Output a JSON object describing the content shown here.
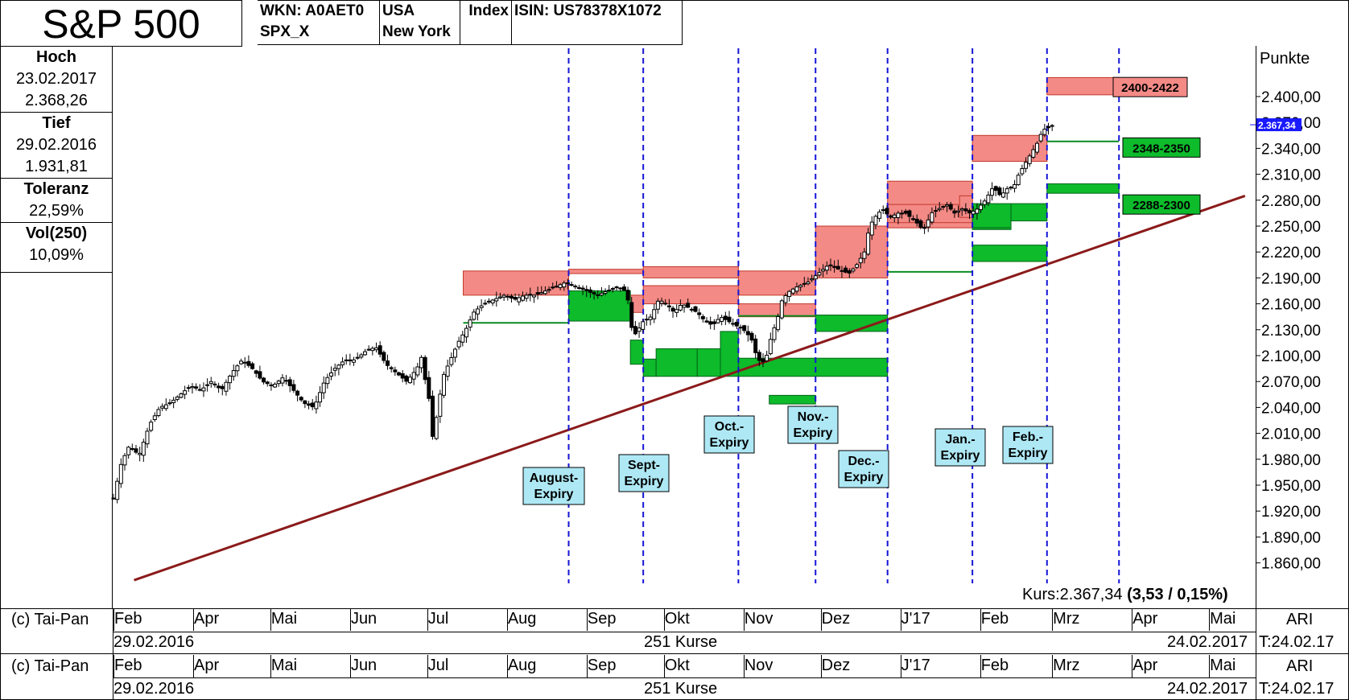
{
  "header": {
    "title": "S&P 500",
    "wkn": "WKN: A0AET0",
    "symbol": "SPX_X",
    "country": "USA",
    "exchange": "New York",
    "type": "Index",
    "isin": "ISIN: US78378X1072"
  },
  "stats": {
    "high_label": "Hoch",
    "high_date": "23.02.2017",
    "high_value": "2.368,26",
    "low_label": "Tief",
    "low_date": "29.02.2016",
    "low_value": "1.931,81",
    "tolerance_label": "Toleranz",
    "tolerance_value": "22,59%",
    "vol_label": "Vol(250)",
    "vol_value": "10,09%"
  },
  "chart_data": {
    "type": "candlestick",
    "ylabel": "Punkte",
    "ylim": [
      1835,
      2445
    ],
    "yticks": [
      "1.860,00",
      "1.890,00",
      "1.920,00",
      "1.950,00",
      "1.980,00",
      "2.010,00",
      "2.040,00",
      "2.070,00",
      "2.100,00",
      "2.130,00",
      "2.160,00",
      "2.190,00",
      "2.220,00",
      "2.250,00",
      "2.280,00",
      "2.310,00",
      "2.340,00",
      "2.370,00",
      "2.400,00"
    ],
    "last_price_tag": "2.367,34",
    "kurs_label": "Kurs:2.367,34",
    "kurs_change": "(3,53 / 0,15%)",
    "months": [
      {
        "label": "Feb",
        "day": 0
      },
      {
        "label": "Apr",
        "day": 31
      },
      {
        "label": "Mai",
        "day": 61
      },
      {
        "label": "Jun",
        "day": 92
      },
      {
        "label": "Jul",
        "day": 122
      },
      {
        "label": "Aug",
        "day": 153
      },
      {
        "label": "Sep",
        "day": 184
      },
      {
        "label": "Okt",
        "day": 214
      },
      {
        "label": "Nov",
        "day": 245
      },
      {
        "label": "Dez",
        "day": 275
      },
      {
        "label": "J'17",
        "day": 306
      },
      {
        "label": "Feb",
        "day": 337
      },
      {
        "label": "Mrz",
        "day": 365
      },
      {
        "label": "Apr",
        "day": 396
      },
      {
        "label": "Mai",
        "day": 426
      }
    ],
    "expiries": [
      {
        "label": "August-|Expiry",
        "day": 177
      },
      {
        "label": "Sept-|Expiry",
        "day": 206
      },
      {
        "label": "Oct.-|Expiry",
        "day": 243
      },
      {
        "label": "Nov.-|Expiry",
        "day": 273
      },
      {
        "label": "Dec.-|Expiry",
        "day": 301
      },
      {
        "label": "Jan.-|Expiry",
        "day": 334
      },
      {
        "label": "Feb.-|Expiry",
        "day": 363
      }
    ],
    "expiry_vlines": [
      177,
      206,
      243,
      273,
      301,
      334,
      363,
      391
    ],
    "price_path": [
      [
        0,
        1935
      ],
      [
        3,
        1975
      ],
      [
        6,
        1995
      ],
      [
        10,
        1985
      ],
      [
        14,
        2020
      ],
      [
        18,
        2040
      ],
      [
        22,
        2045
      ],
      [
        26,
        2055
      ],
      [
        30,
        2065
      ],
      [
        34,
        2060
      ],
      [
        38,
        2070
      ],
      [
        42,
        2060
      ],
      [
        46,
        2080
      ],
      [
        50,
        2095
      ],
      [
        54,
        2085
      ],
      [
        58,
        2070
      ],
      [
        62,
        2065
      ],
      [
        66,
        2075
      ],
      [
        70,
        2060
      ],
      [
        74,
        2045
      ],
      [
        78,
        2040
      ],
      [
        82,
        2070
      ],
      [
        86,
        2085
      ],
      [
        90,
        2095
      ],
      [
        94,
        2095
      ],
      [
        98,
        2105
      ],
      [
        102,
        2110
      ],
      [
        106,
        2090
      ],
      [
        110,
        2080
      ],
      [
        114,
        2070
      ],
      [
        118,
        2085
      ],
      [
        120,
        2100
      ],
      [
        121,
        2075
      ],
      [
        123,
        2045
      ],
      [
        124,
        2005
      ],
      [
        126,
        2035
      ],
      [
        128,
        2075
      ],
      [
        131,
        2095
      ],
      [
        134,
        2115
      ],
      [
        137,
        2130
      ],
      [
        140,
        2150
      ],
      [
        144,
        2160
      ],
      [
        148,
        2165
      ],
      [
        152,
        2170
      ],
      [
        156,
        2165
      ],
      [
        160,
        2170
      ],
      [
        164,
        2170
      ],
      [
        168,
        2175
      ],
      [
        172,
        2180
      ],
      [
        176,
        2185
      ],
      [
        180,
        2180
      ],
      [
        184,
        2175
      ],
      [
        188,
        2170
      ],
      [
        192,
        2175
      ],
      [
        196,
        2180
      ],
      [
        199,
        2175
      ],
      [
        200,
        2165
      ],
      [
        201,
        2135
      ],
      [
        203,
        2125
      ],
      [
        206,
        2140
      ],
      [
        209,
        2145
      ],
      [
        212,
        2165
      ],
      [
        215,
        2160
      ],
      [
        218,
        2150
      ],
      [
        221,
        2160
      ],
      [
        224,
        2155
      ],
      [
        227,
        2150
      ],
      [
        230,
        2140
      ],
      [
        233,
        2135
      ],
      [
        236,
        2145
      ],
      [
        239,
        2140
      ],
      [
        242,
        2135
      ],
      [
        245,
        2130
      ],
      [
        248,
        2120
      ],
      [
        250,
        2100
      ],
      [
        252,
        2090
      ],
      [
        254,
        2100
      ],
      [
        256,
        2125
      ],
      [
        258,
        2140
      ],
      [
        260,
        2165
      ],
      [
        263,
        2175
      ],
      [
        266,
        2180
      ],
      [
        270,
        2185
      ],
      [
        274,
        2195
      ],
      [
        278,
        2205
      ],
      [
        282,
        2200
      ],
      [
        286,
        2195
      ],
      [
        289,
        2205
      ],
      [
        292,
        2220
      ],
      [
        294,
        2250
      ],
      [
        296,
        2260
      ],
      [
        299,
        2270
      ],
      [
        302,
        2260
      ],
      [
        305,
        2265
      ],
      [
        308,
        2265
      ],
      [
        312,
        2255
      ],
      [
        315,
        2245
      ],
      [
        318,
        2265
      ],
      [
        321,
        2270
      ],
      [
        324,
        2275
      ],
      [
        327,
        2265
      ],
      [
        330,
        2270
      ],
      [
        333,
        2265
      ],
      [
        336,
        2270
      ],
      [
        339,
        2280
      ],
      [
        342,
        2295
      ],
      [
        345,
        2285
      ],
      [
        348,
        2295
      ],
      [
        350,
        2295
      ],
      [
        352,
        2310
      ],
      [
        354,
        2320
      ],
      [
        356,
        2330
      ],
      [
        358,
        2340
      ],
      [
        359,
        2345
      ],
      [
        360,
        2350
      ],
      [
        361,
        2360
      ],
      [
        362,
        2362
      ],
      [
        363,
        2365
      ],
      [
        364,
        2363
      ],
      [
        365,
        2366
      ],
      [
        366,
        2367
      ]
    ],
    "call_zones": [
      [
        136,
        177,
        2170,
        2198
      ],
      [
        177,
        206,
        2195,
        2200
      ],
      [
        206,
        243,
        2190,
        2203
      ],
      [
        206,
        243,
        2160,
        2181
      ],
      [
        177,
        206,
        2150,
        2170
      ],
      [
        243,
        273,
        2170,
        2198
      ],
      [
        243,
        273,
        2145,
        2160
      ],
      [
        273,
        301,
        2190,
        2250
      ],
      [
        301,
        334,
        2248,
        2302
      ],
      [
        301,
        334,
        2254,
        2275
      ],
      [
        329,
        334,
        2260,
        2285
      ],
      [
        334,
        363,
        2325,
        2355
      ],
      [
        363,
        391,
        2402,
        2422
      ]
    ],
    "put_zones": [
      [
        177,
        201,
        2140,
        2175
      ],
      [
        201,
        206,
        2090,
        2118
      ],
      [
        206,
        211,
        2076,
        2096
      ],
      [
        211,
        227,
        2076,
        2108
      ],
      [
        227,
        236,
        2076,
        2108
      ],
      [
        236,
        243,
        2076,
        2128
      ],
      [
        243,
        301,
        2076,
        2097
      ],
      [
        255,
        273,
        2044,
        2054
      ],
      [
        273,
        301,
        2128,
        2147
      ],
      [
        334,
        349,
        2246,
        2276
      ],
      [
        349,
        363,
        2256,
        2276
      ],
      [
        334,
        363,
        2209,
        2228
      ],
      [
        363,
        391,
        2288,
        2299
      ]
    ],
    "level_lines": [
      [
        136,
        177,
        2138
      ],
      [
        301,
        334,
        2197
      ],
      [
        363,
        391,
        2348
      ],
      [
        243,
        273,
        2146
      ],
      [
        334,
        349,
        2248
      ]
    ],
    "right_tags": [
      {
        "label": "2400-2422",
        "value": 2411,
        "kind": "call"
      },
      {
        "label": "2348-2350",
        "value": 2341,
        "kind": "put"
      },
      {
        "label": "2288-2300",
        "value": 2275,
        "kind": "put"
      }
    ],
    "trendline": [
      [
        8,
        1840
      ],
      [
        440,
        2285
      ]
    ]
  },
  "footer": {
    "copyright": "(c) Tai-Pan",
    "start_date": "29.02.2016",
    "count": "251 Kurse",
    "end_date": "24.02.2017",
    "ari": "ARI",
    "t_date": "T:24.02.17"
  }
}
